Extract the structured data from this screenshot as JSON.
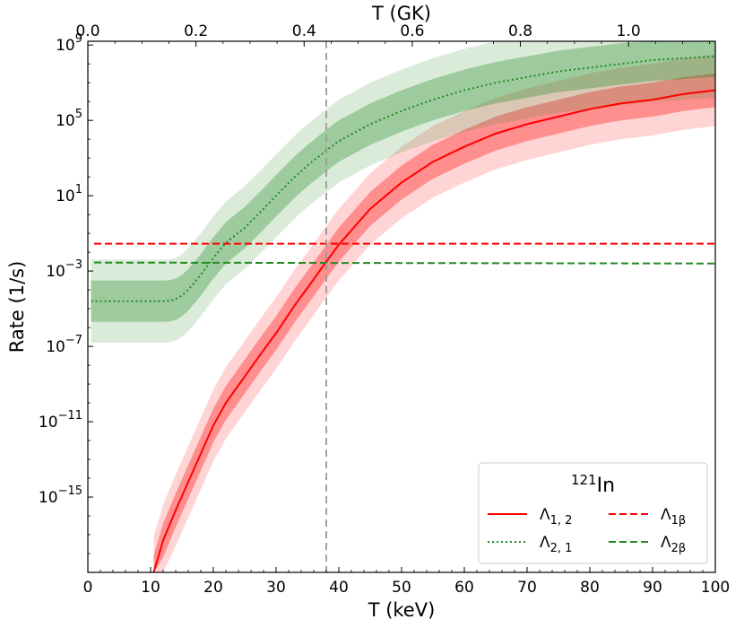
{
  "chart_data": {
    "type": "line",
    "xlabel": "T (keV)",
    "ylabel": "Rate (1/s)",
    "top_xlabel": "T (GK)",
    "xlim": [
      0,
      100
    ],
    "ylim_log10": [
      -19,
      9.2
    ],
    "x_ticks": [
      0,
      10,
      20,
      30,
      40,
      50,
      60,
      70,
      80,
      90,
      100
    ],
    "x_tick_labels": [
      "0",
      "10",
      "20",
      "30",
      "40",
      "50",
      "60",
      "70",
      "80",
      "90",
      "100"
    ],
    "y_ticks_log10": [
      -15,
      -11,
      -7,
      -3,
      1,
      5,
      9
    ],
    "y_tick_labels": [
      {
        "base": "10",
        "exp": "−15"
      },
      {
        "base": "10",
        "exp": "−11"
      },
      {
        "base": "10",
        "exp": "−7"
      },
      {
        "base": "10",
        "exp": "−3"
      },
      {
        "base": "10",
        "exp": "1"
      },
      {
        "base": "10",
        "exp": "5"
      },
      {
        "base": "10",
        "exp": "9"
      }
    ],
    "top_x_ticks_gk": [
      0.0,
      0.2,
      0.4,
      0.6,
      0.8,
      1.0
    ],
    "top_x_tick_labels": [
      "0.0",
      "0.2",
      "0.4",
      "0.6",
      "0.8",
      "1.0"
    ],
    "keV_per_GK": 86.17,
    "vertical_line_x": 38,
    "legend": {
      "title_mass": "121",
      "title_element": "In",
      "placement": "lower-right"
    },
    "series": [
      {
        "key": "lambda12",
        "name": "Λ1,2",
        "label_main": "Λ",
        "label_sub": "1, 2",
        "color": "#ff0000",
        "style": "solid",
        "x": [
          10.5,
          12,
          14,
          16,
          18,
          20,
          22,
          25,
          28,
          30,
          33,
          35,
          38,
          40,
          45,
          50,
          55,
          60,
          65,
          70,
          75,
          80,
          85,
          90,
          95,
          100
        ],
        "log10_y": [
          -19.0,
          -17.3,
          -15.7,
          -14.2,
          -12.7,
          -11.2,
          -10.0,
          -8.6,
          -7.2,
          -6.3,
          -4.8,
          -3.9,
          -2.5,
          -1.6,
          0.3,
          1.7,
          2.8,
          3.6,
          4.3,
          4.8,
          5.2,
          5.6,
          5.9,
          6.1,
          6.4,
          6.6
        ],
        "band_inner_halfwidth": 0.9,
        "band_outer_halfwidth": 1.9
      },
      {
        "key": "lambda21",
        "name": "Λ2,1",
        "label_main": "Λ",
        "label_sub": "2, 1",
        "color": "#228b22",
        "style": "dotted",
        "x": [
          0.5,
          5,
          10,
          12,
          13,
          14,
          15,
          16,
          18,
          20,
          22,
          25,
          28,
          30,
          33,
          35,
          38,
          40,
          45,
          50,
          55,
          60,
          65,
          70,
          75,
          80,
          85,
          90,
          95,
          100
        ],
        "log10_y": [
          -4.6,
          -4.6,
          -4.6,
          -4.6,
          -4.58,
          -4.5,
          -4.3,
          -4.0,
          -3.2,
          -2.3,
          -1.5,
          -0.7,
          0.3,
          1.0,
          2.0,
          2.6,
          3.4,
          3.9,
          4.8,
          5.5,
          6.1,
          6.6,
          7.0,
          7.3,
          7.6,
          7.8,
          8.0,
          8.2,
          8.3,
          8.4
        ],
        "band_inner_halfwidth": 1.1,
        "band_outer_halfwidth": 2.2
      },
      {
        "key": "lambda1b",
        "name": "Λ1β",
        "label_main": "Λ",
        "label_sub": "1β",
        "color": "#ff0000",
        "style": "dashed",
        "x": [
          1,
          100
        ],
        "log10_y": [
          -1.55,
          -1.55
        ]
      },
      {
        "key": "lambda2b",
        "name": "Λ2β",
        "label_main": "Λ",
        "label_sub": "2β",
        "color": "#228b22",
        "style": "dashed",
        "x": [
          1,
          100
        ],
        "log10_y": [
          -2.55,
          -2.6
        ]
      }
    ]
  }
}
